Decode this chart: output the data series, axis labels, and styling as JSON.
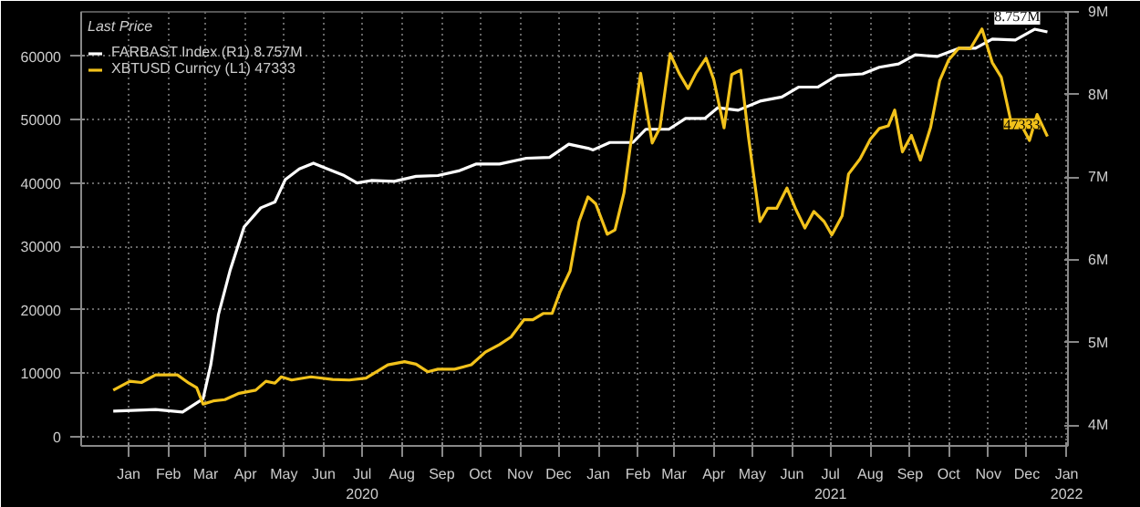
{
  "chart_data": {
    "type": "line",
    "legend_title": "Last Price",
    "legend": "top left",
    "grid": true,
    "xlim": [
      "2019-12-09",
      "2022-01-16"
    ],
    "xticks": [
      {
        "value": "2020-01-15",
        "label": "Jan"
      },
      {
        "value": "2020-02-15",
        "label": "Feb"
      },
      {
        "value": "2020-03-15",
        "label": "Mar"
      },
      {
        "value": "2020-04-15",
        "label": "Apr"
      },
      {
        "value": "2020-05-15",
        "label": "May"
      },
      {
        "value": "2020-06-15",
        "label": "Jun"
      },
      {
        "value": "2020-07-15",
        "label": "Jul\n2020"
      },
      {
        "value": "2020-08-15",
        "label": "Aug"
      },
      {
        "value": "2020-09-15",
        "label": "Sep"
      },
      {
        "value": "2020-10-15",
        "label": "Oct"
      },
      {
        "value": "2020-11-15",
        "label": "Nov"
      },
      {
        "value": "2020-12-15",
        "label": "Dec"
      },
      {
        "value": "2021-01-15",
        "label": "Jan"
      },
      {
        "value": "2021-02-15",
        "label": "Feb"
      },
      {
        "value": "2021-03-15",
        "label": "Mar"
      },
      {
        "value": "2021-04-15",
        "label": "Apr"
      },
      {
        "value": "2021-05-15",
        "label": "May"
      },
      {
        "value": "2021-06-15",
        "label": "Jun"
      },
      {
        "value": "2021-07-15",
        "label": "Jul\n2021"
      },
      {
        "value": "2021-08-15",
        "label": "Aug"
      },
      {
        "value": "2021-09-15",
        "label": "Sep"
      },
      {
        "value": "2021-10-15",
        "label": "Oct"
      },
      {
        "value": "2021-11-15",
        "label": "Nov"
      },
      {
        "value": "2021-12-15",
        "label": "Dec"
      },
      {
        "value": "2022-01-15",
        "label": "Jan\n2022"
      }
    ],
    "ylim": [
      -1500,
      67000
    ],
    "yticks": [
      0,
      10000,
      20000,
      30000,
      40000,
      50000,
      60000
    ],
    "y2lim": [
      3.75,
      9.0
    ],
    "y2ticks": [
      {
        "value": 4,
        "label": "4M"
      },
      {
        "value": 5,
        "label": "5M"
      },
      {
        "value": 6,
        "label": "6M"
      },
      {
        "value": 7,
        "label": "7M"
      },
      {
        "value": 8,
        "label": "8M"
      },
      {
        "value": 9,
        "label": "9M"
      }
    ],
    "series": [
      {
        "name": "FARBAST Index (R1) 8.757M",
        "color": "#ffffff",
        "axis": "y2",
        "x": [
          "2020-01-03",
          "2020-02-05",
          "2020-02-26",
          "2020-03-13",
          "2020-03-19",
          "2020-03-25",
          "2020-04-03",
          "2020-04-14",
          "2020-04-27",
          "2020-05-08",
          "2020-05-16",
          "2020-05-27",
          "2020-06-07",
          "2020-06-18",
          "2020-07-01",
          "2020-07-11",
          "2020-07-22",
          "2020-08-09",
          "2020-08-26",
          "2020-09-12",
          "2020-09-29",
          "2020-10-12",
          "2020-10-30",
          "2020-11-20",
          "2020-12-08",
          "2020-12-23",
          "2021-01-07",
          "2021-01-11",
          "2021-01-24",
          "2021-02-11",
          "2021-02-21",
          "2021-03-11",
          "2021-03-24",
          "2021-04-08",
          "2021-04-18",
          "2021-05-04",
          "2021-05-21",
          "2021-06-07",
          "2021-06-20",
          "2021-07-05",
          "2021-07-20",
          "2021-08-09",
          "2021-08-22",
          "2021-09-06",
          "2021-09-19",
          "2021-10-06",
          "2021-10-23",
          "2021-11-05",
          "2021-11-18",
          "2021-12-06",
          "2021-12-21",
          "2021-12-31"
        ],
        "values": [
          4.17,
          4.19,
          4.16,
          4.32,
          4.73,
          5.34,
          5.87,
          6.4,
          6.63,
          6.7,
          6.97,
          7.1,
          7.17,
          7.1,
          7.02,
          6.93,
          6.96,
          6.95,
          7.01,
          7.02,
          7.08,
          7.16,
          7.16,
          7.23,
          7.24,
          7.4,
          7.35,
          7.33,
          7.42,
          7.42,
          7.58,
          7.58,
          7.71,
          7.71,
          7.84,
          7.81,
          7.92,
          7.97,
          8.09,
          8.09,
          8.23,
          8.25,
          8.33,
          8.37,
          8.48,
          8.46,
          8.56,
          8.56,
          8.67,
          8.66,
          8.79,
          8.757
        ],
        "value_labels": [
          null,
          null,
          null,
          null,
          null,
          null,
          null,
          null,
          null,
          null,
          null,
          null,
          null,
          null,
          null,
          null,
          null,
          null,
          null,
          null,
          null,
          null,
          null,
          null,
          null,
          null,
          null,
          null,
          null,
          null,
          null,
          null,
          null,
          null,
          null,
          null,
          null,
          null,
          null,
          null,
          null,
          null,
          null,
          null,
          null,
          null,
          null,
          null,
          null,
          null,
          null,
          "8.757M"
        ]
      },
      {
        "name": "XBTUSD Curncy (L1) 47333",
        "color": "#f2c21b",
        "x": [
          "2020-01-03",
          "2020-01-16",
          "2020-01-25",
          "2020-02-05",
          "2020-02-13",
          "2020-02-22",
          "2020-03-02",
          "2020-03-08",
          "2020-03-13",
          "2020-03-21",
          "2020-03-30",
          "2020-04-10",
          "2020-04-23",
          "2020-05-01",
          "2020-05-08",
          "2020-05-13",
          "2020-05-21",
          "2020-06-05",
          "2020-06-22",
          "2020-07-05",
          "2020-07-18",
          "2020-08-04",
          "2020-08-17",
          "2020-08-26",
          "2020-09-04",
          "2020-09-12",
          "2020-09-25",
          "2020-10-08",
          "2020-10-19",
          "2020-10-30",
          "2020-11-08",
          "2020-11-18",
          "2020-11-25",
          "2020-12-03",
          "2020-12-10",
          "2020-12-16",
          "2020-12-24",
          "2020-12-31",
          "2021-01-07",
          "2021-01-13",
          "2021-01-22",
          "2021-01-28",
          "2021-02-04",
          "2021-02-10",
          "2021-02-17",
          "2021-02-26",
          "2021-03-04",
          "2021-03-12",
          "2021-03-19",
          "2021-03-26",
          "2021-04-01",
          "2021-04-09",
          "2021-04-15",
          "2021-04-23",
          "2021-04-29",
          "2021-05-06",
          "2021-05-12",
          "2021-05-21",
          "2021-05-27",
          "2021-06-03",
          "2021-06-11",
          "2021-06-18",
          "2021-06-25",
          "2021-07-02",
          "2021-07-10",
          "2021-07-16",
          "2021-07-24",
          "2021-07-29",
          "2021-08-07",
          "2021-08-15",
          "2021-08-22",
          "2021-08-29",
          "2021-09-03",
          "2021-09-09",
          "2021-09-16",
          "2021-09-23",
          "2021-10-01",
          "2021-10-08",
          "2021-10-15",
          "2021-10-23",
          "2021-11-01",
          "2021-11-10",
          "2021-11-18",
          "2021-11-25",
          "2021-12-03",
          "2021-12-09",
          "2021-12-17",
          "2021-12-23",
          "2021-12-31"
        ],
        "values": [
          7300,
          8700,
          8500,
          9700,
          9700,
          9700,
          8400,
          7700,
          5100,
          5600,
          5800,
          6800,
          7300,
          8700,
          8400,
          9400,
          8900,
          9400,
          9000,
          8900,
          9200,
          11300,
          11800,
          11400,
          10200,
          10600,
          10600,
          11300,
          13300,
          14500,
          15700,
          18400,
          18400,
          19400,
          19400,
          22700,
          26100,
          33900,
          37800,
          36700,
          31900,
          32600,
          38400,
          47300,
          57300,
          46300,
          48700,
          60400,
          57300,
          54900,
          57300,
          59700,
          56300,
          48700,
          57100,
          57800,
          47300,
          33900,
          36000,
          36000,
          39200,
          35800,
          32900,
          35500,
          33900,
          31800,
          34800,
          41400,
          43800,
          46900,
          48600,
          49000,
          51500,
          44900,
          47500,
          43600,
          48800,
          56100,
          59400,
          61300,
          61200,
          64300,
          59000,
          56700,
          49300,
          49800,
          46700,
          50800,
          47333
        ],
        "value_labels": [
          null,
          null,
          null,
          null,
          null,
          null,
          null,
          null,
          null,
          null,
          null,
          null,
          null,
          null,
          null,
          null,
          null,
          null,
          null,
          null,
          null,
          null,
          null,
          null,
          null,
          null,
          null,
          null,
          null,
          null,
          null,
          null,
          null,
          null,
          null,
          null,
          null,
          null,
          null,
          null,
          null,
          null,
          null,
          null,
          null,
          null,
          null,
          null,
          null,
          null,
          null,
          null,
          null,
          null,
          null,
          null,
          null,
          null,
          null,
          null,
          null,
          null,
          null,
          null,
          null,
          null,
          null,
          null,
          null,
          null,
          null,
          null,
          null,
          null,
          null,
          null,
          null,
          null,
          null,
          null,
          null,
          null,
          null,
          null,
          null,
          null,
          null,
          null,
          "47333"
        ]
      }
    ]
  }
}
